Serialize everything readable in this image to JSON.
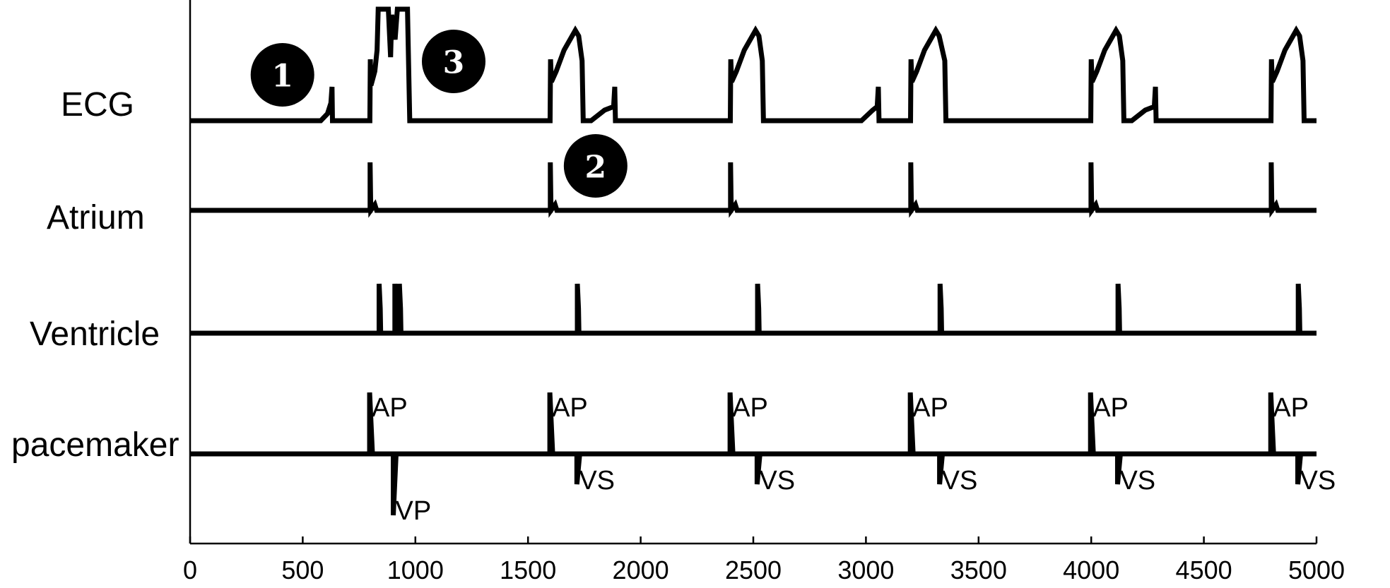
{
  "chart_data": {
    "type": "line",
    "title": "",
    "xlabel": "",
    "ylabel": "",
    "xlim": [
      0,
      5000
    ],
    "x_ticks": [
      0,
      500,
      1000,
      1500,
      2000,
      2500,
      3000,
      3500,
      4000,
      4500,
      5000
    ],
    "x_tick_labels": [
      "0",
      "500",
      "1000",
      "1500",
      "2000",
      "2500",
      "3000",
      "3500",
      "4000",
      "4500",
      "5000"
    ],
    "colors": {
      "trace": "#000000",
      "marker_fill": "#000000",
      "marker_text": "#ffffff"
    },
    "rows": [
      {
        "id": "ecg",
        "label": "ECG"
      },
      {
        "id": "atrium",
        "label": "Atrium"
      },
      {
        "id": "ventricle",
        "label": "Ventricle"
      },
      {
        "id": "pacemaker",
        "label": "pacemaker"
      }
    ],
    "events": {
      "atrial_activations": [
        800,
        1600,
        2400,
        3200,
        4000,
        4800
      ],
      "ventricular_activations": [
        840,
        910,
        930,
        1720,
        2520,
        3330,
        4120,
        4920
      ],
      "pacemaker": [
        {
          "t": 800,
          "type": "AP"
        },
        {
          "t": 905,
          "type": "VP"
        },
        {
          "t": 1600,
          "type": "AP"
        },
        {
          "t": 1720,
          "type": "VS"
        },
        {
          "t": 2400,
          "type": "AP"
        },
        {
          "t": 2520,
          "type": "VS"
        },
        {
          "t": 3200,
          "type": "AP"
        },
        {
          "t": 3330,
          "type": "VS"
        },
        {
          "t": 4000,
          "type": "AP"
        },
        {
          "t": 4120,
          "type": "VS"
        },
        {
          "t": 4800,
          "type": "AP"
        },
        {
          "t": 4920,
          "type": "VS"
        }
      ]
    },
    "annotations": [
      {
        "text": "1",
        "t": 410
      },
      {
        "text": "2",
        "t": 1800
      },
      {
        "text": "3",
        "t": 1170
      }
    ]
  }
}
